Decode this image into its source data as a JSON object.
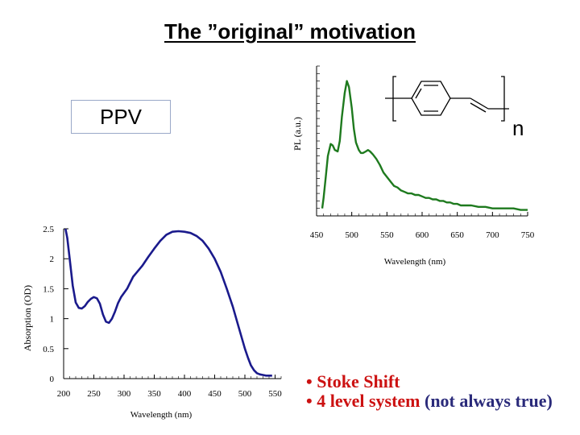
{
  "slide": {
    "title": "The ”original” motivation",
    "ppv_label": "PPV",
    "polymer_subscript": "n",
    "bullets": [
      {
        "text": "• Stoke Shift"
      },
      {
        "text": "• 4 level system",
        "paren": "(not always true)"
      }
    ],
    "colors": {
      "absorption": "#1a1a8c",
      "emission": "#1e7a1e",
      "bullet": "#cc1111",
      "paren": "#2a2a7a"
    }
  },
  "chart_data": [
    {
      "type": "line",
      "title": "",
      "xlabel": "Wavelength (nm)",
      "ylabel": "Absorption (OD)",
      "xlim": [
        200,
        560
      ],
      "ylim": [
        0,
        2.5
      ],
      "xticks": [
        200,
        250,
        300,
        350,
        400,
        450,
        500,
        550
      ],
      "yticks": [
        0,
        0.5,
        1,
        1.5,
        2,
        2.5
      ],
      "xtick_labels": [
        "200",
        "250",
        "300",
        "350",
        "400",
        "450",
        "500",
        "550"
      ],
      "ytick_labels": [
        "0",
        "0.5",
        "1",
        "1.5",
        "2",
        "2.5"
      ],
      "series": [
        {
          "color": "#1a1a8c",
          "x": [
            203,
            206,
            210,
            215,
            220,
            225,
            230,
            235,
            240,
            245,
            250,
            255,
            260,
            265,
            270,
            275,
            280,
            285,
            290,
            295,
            300,
            305,
            310,
            315,
            320,
            330,
            340,
            350,
            360,
            370,
            380,
            390,
            400,
            410,
            420,
            430,
            440,
            450,
            460,
            470,
            480,
            490,
            500,
            505,
            510,
            515,
            520,
            525,
            530,
            535,
            540,
            545
          ],
          "y": [
            2.5,
            2.35,
            2.0,
            1.55,
            1.27,
            1.18,
            1.17,
            1.21,
            1.28,
            1.33,
            1.36,
            1.34,
            1.25,
            1.07,
            0.95,
            0.93,
            1.0,
            1.12,
            1.26,
            1.36,
            1.43,
            1.5,
            1.6,
            1.7,
            1.76,
            1.88,
            2.03,
            2.17,
            2.3,
            2.4,
            2.45,
            2.46,
            2.45,
            2.43,
            2.38,
            2.3,
            2.17,
            2.0,
            1.78,
            1.5,
            1.2,
            0.85,
            0.5,
            0.35,
            0.22,
            0.14,
            0.09,
            0.07,
            0.06,
            0.05,
            0.05,
            0.05
          ]
        }
      ]
    },
    {
      "type": "line",
      "title": "",
      "xlabel": "Wavelength (nm)",
      "ylabel": "PL (a.u.)",
      "xlim": [
        450,
        750
      ],
      "xticks": [
        450,
        500,
        550,
        600,
        650,
        700,
        750
      ],
      "xtick_labels": [
        "450",
        "500",
        "550",
        "600",
        "650",
        "700",
        "750"
      ],
      "ylim": [
        0,
        1
      ],
      "series": [
        {
          "color": "#1e7a1e",
          "x": [
            458,
            460,
            463,
            466,
            470,
            473,
            476,
            480,
            483,
            486,
            490,
            493,
            496,
            500,
            503,
            506,
            510,
            513,
            516,
            520,
            523,
            526,
            530,
            535,
            540,
            545,
            550,
            555,
            560,
            565,
            570,
            575,
            580,
            585,
            590,
            595,
            600,
            605,
            610,
            615,
            620,
            625,
            630,
            635,
            640,
            645,
            650,
            655,
            660,
            670,
            680,
            690,
            700,
            710,
            720,
            730,
            740,
            750
          ],
          "y": [
            0.05,
            0.12,
            0.26,
            0.4,
            0.48,
            0.47,
            0.44,
            0.43,
            0.5,
            0.66,
            0.82,
            0.9,
            0.86,
            0.72,
            0.58,
            0.49,
            0.44,
            0.42,
            0.42,
            0.43,
            0.44,
            0.43,
            0.41,
            0.38,
            0.34,
            0.29,
            0.26,
            0.23,
            0.2,
            0.19,
            0.17,
            0.16,
            0.15,
            0.15,
            0.14,
            0.14,
            0.13,
            0.12,
            0.12,
            0.11,
            0.11,
            0.1,
            0.1,
            0.09,
            0.09,
            0.08,
            0.08,
            0.07,
            0.07,
            0.07,
            0.06,
            0.06,
            0.05,
            0.05,
            0.05,
            0.05,
            0.04,
            0.04
          ]
        }
      ]
    }
  ]
}
